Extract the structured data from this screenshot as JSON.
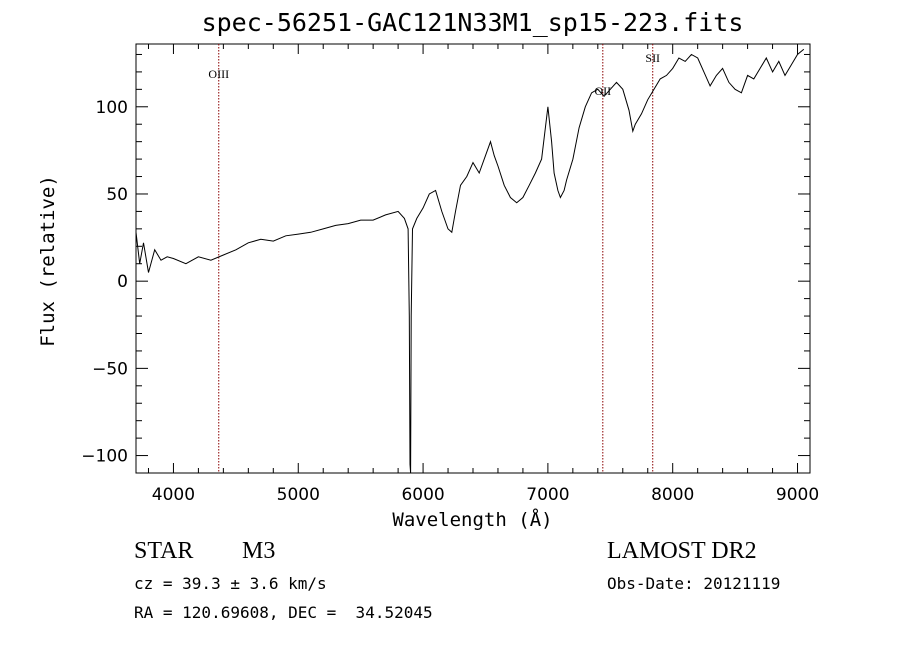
{
  "chart_data": {
    "type": "line",
    "title": "spec-56251-GAC121N33M1_sp15-223.fits",
    "xlabel": "Wavelength (Å)",
    "ylabel": "Flux (relative)",
    "xlim": [
      3700,
      9100
    ],
    "ylim": [
      -110,
      136
    ],
    "x_ticks": [
      4000,
      5000,
      6000,
      7000,
      8000,
      9000
    ],
    "y_ticks": [
      -100,
      -50,
      0,
      50,
      100
    ],
    "grid": false,
    "line_color": "#000000",
    "marker_color": "#8b0000",
    "series": [
      {
        "x": [
          3700,
          3730,
          3760,
          3800,
          3850,
          3900,
          3950,
          4000,
          4100,
          4200,
          4300,
          4400,
          4500,
          4600,
          4700,
          4800,
          4900,
          5000,
          5100,
          5200,
          5300,
          5400,
          5500,
          5600,
          5700,
          5800,
          5850,
          5880,
          5890,
          5895,
          5900,
          5905,
          5915,
          5950,
          6000,
          6050,
          6100,
          6150,
          6200,
          6230,
          6260,
          6300,
          6350,
          6400,
          6450,
          6500,
          6540,
          6570,
          6600,
          6650,
          6700,
          6750,
          6800,
          6850,
          6900,
          6950,
          7000,
          7030,
          7050,
          7080,
          7100,
          7130,
          7150,
          7200,
          7250,
          7300,
          7350,
          7400,
          7450,
          7500,
          7550,
          7600,
          7650,
          7680,
          7700,
          7750,
          7800,
          7850,
          7900,
          7950,
          8000,
          8050,
          8100,
          8150,
          8200,
          8250,
          8300,
          8350,
          8400,
          8450,
          8500,
          8550,
          8600,
          8650,
          8700,
          8750,
          8800,
          8850,
          8900,
          8950,
          9000,
          9050
        ],
        "y": [
          28,
          10,
          22,
          5,
          18,
          12,
          14,
          13,
          10,
          14,
          12,
          15,
          18,
          22,
          24,
          23,
          26,
          27,
          28,
          30,
          32,
          33,
          35,
          35,
          38,
          40,
          36,
          30,
          -20,
          -105,
          -110,
          -20,
          30,
          36,
          42,
          50,
          52,
          40,
          30,
          28,
          40,
          55,
          60,
          68,
          62,
          72,
          80,
          72,
          66,
          55,
          48,
          45,
          48,
          55,
          62,
          70,
          100,
          80,
          62,
          52,
          48,
          52,
          58,
          70,
          88,
          100,
          108,
          110,
          106,
          110,
          114,
          110,
          98,
          86,
          90,
          96,
          104,
          110,
          116,
          118,
          122,
          128,
          126,
          130,
          128,
          120,
          112,
          118,
          122,
          114,
          110,
          108,
          118,
          116,
          122,
          128,
          120,
          126,
          118,
          124,
          130,
          133
        ]
      }
    ],
    "line_markers": [
      {
        "label": "OIII",
        "x": 4363
      },
      {
        "label": "OII",
        "x": 7440
      },
      {
        "label": "SII",
        "x": 7840
      }
    ]
  },
  "info": {
    "obj_class": "STAR",
    "obj_subclass": "M3",
    "survey": "LAMOST DR2",
    "cz": "cz = 39.3 ± 3.6 km/s",
    "obs_date": "Obs-Date: 20121119",
    "radec": "RA = 120.69608, DEC =  34.52045"
  }
}
